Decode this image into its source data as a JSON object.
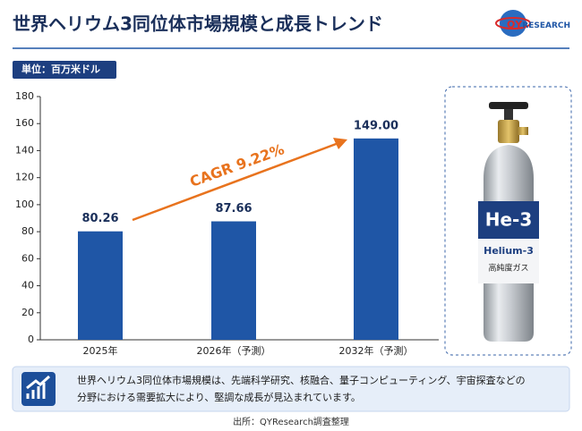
{
  "title": "世界ヘリウム3同位体市場規模と成長トレンド",
  "logo_text": [
    "QY",
    "RESEARCH"
  ],
  "chart_data": {
    "type": "bar",
    "unit_label": "単位：百万米ドル",
    "categories": [
      "2025年",
      "2026年（予測）",
      "2032年（予測）"
    ],
    "values": [
      80.26,
      87.66,
      149
    ],
    "value_labels": [
      "80.26",
      "87.66",
      "149.00"
    ],
    "color": "#1f56a6",
    "ylim": [
      0,
      180
    ],
    "yticks": [
      0,
      20,
      40,
      60,
      80,
      100,
      120,
      140,
      160,
      180
    ],
    "grid": false,
    "annotation": "CAGR 9.22%"
  },
  "product": {
    "symbol": "He-3",
    "name": "Helium-3",
    "note": "高純度ガス"
  },
  "description": [
    "世界ヘリウム3同位体市場規模は、先端科学研究、核融合、量子コンピューティング、宇宙探査などの",
    "分野における需要拡大により、堅調な成長が見込まれています。"
  ],
  "source": "出所：QYResearch調査整理"
}
